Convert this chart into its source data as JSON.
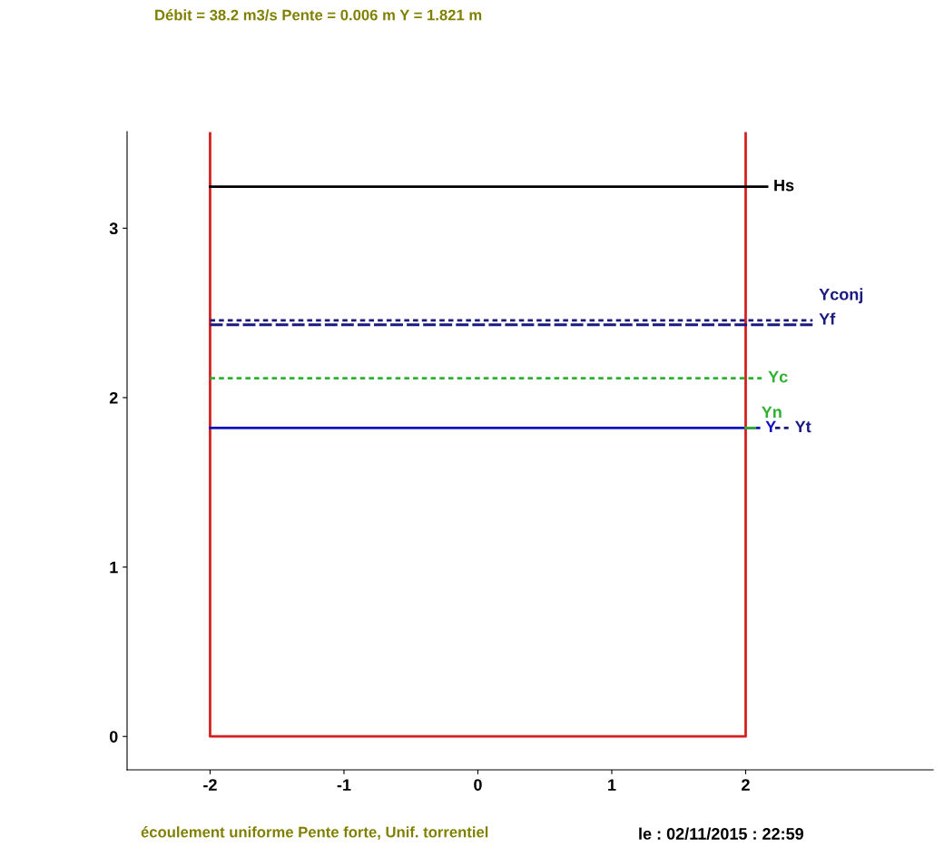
{
  "chart_data": {
    "type": "line",
    "title": "Débit = 38.2 m3/s Pente = 0.006 m Y = 1.821 m",
    "xlim": [
      -2.62,
      3.4
    ],
    "ylim": [
      -0.197,
      3.57
    ],
    "xticks": [
      -2,
      -1,
      0,
      1,
      2
    ],
    "yticks": [
      0,
      1,
      2,
      3
    ],
    "grid": false,
    "legend": false,
    "series": [
      {
        "color": "#d42020",
        "x": [
          -2,
          -2,
          2,
          2
        ],
        "values": [
          3.56,
          0,
          0,
          3.56
        ],
        "line_style": "solid"
      },
      {
        "name": "Hs",
        "color": "#000000",
        "x": [
          -2,
          2.16
        ],
        "values": [
          3.245,
          3.245
        ],
        "line_style": "solid"
      },
      {
        "name": "Yf",
        "color": "#1a1a80",
        "x": [
          -2,
          2.5
        ],
        "values": [
          2.456,
          2.456
        ],
        "line_style": "dotted"
      },
      {
        "name": "Yconj",
        "color": "#1a1a80",
        "x": [
          -2,
          2.5
        ],
        "values": [
          2.43,
          2.43
        ],
        "line_style": "dashed"
      },
      {
        "name": "Yc",
        "color": "#30b030",
        "x": [
          -2,
          2.12
        ],
        "values": [
          2.115,
          2.115
        ],
        "line_style": "dotted"
      },
      {
        "name": "Y",
        "color": "#1010c0",
        "x": [
          -2,
          2.1
        ],
        "values": [
          1.821,
          1.821
        ],
        "line_style": "solid"
      },
      {
        "name": "Yn",
        "color": "#30b030",
        "x": [
          2.0,
          2.07
        ],
        "values": [
          1.821,
          1.821
        ],
        "line_style": "solid"
      },
      {
        "name": "Yt",
        "color": "#1a1a80",
        "x": [
          2.22,
          2.32
        ],
        "values": [
          1.821,
          1.821
        ],
        "line_style": "dotted"
      }
    ],
    "annotations": [
      "écoulement uniforme Pente forte, Unif. torrentiel",
      "le : 02/11/2015 : 22:59"
    ]
  }
}
